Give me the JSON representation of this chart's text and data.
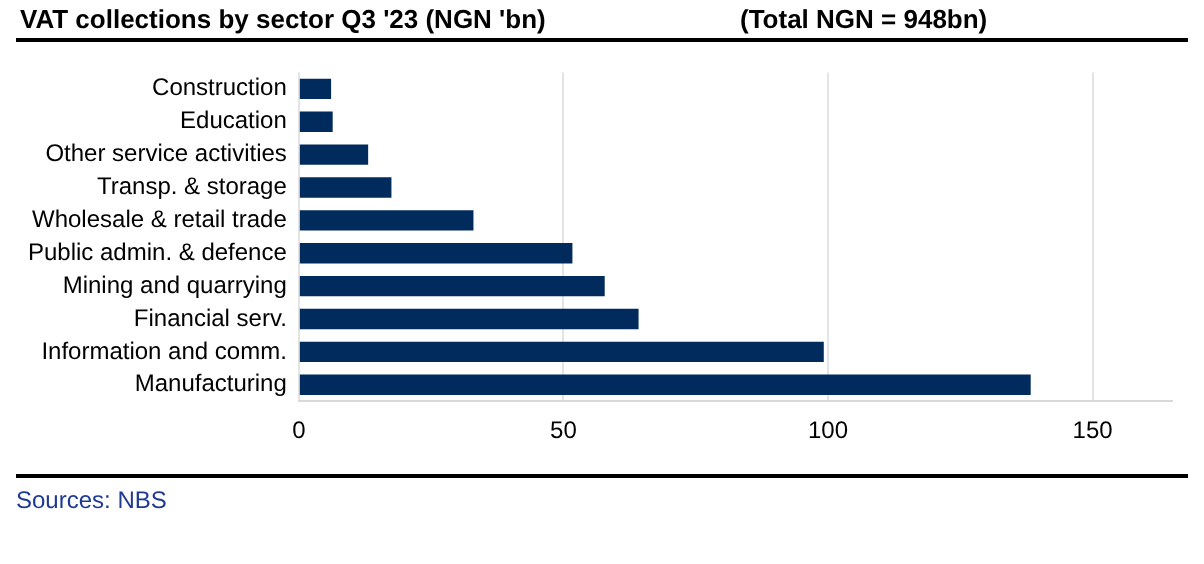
{
  "chart_data": {
    "type": "bar",
    "orientation": "horizontal",
    "title": "VAT collections by sector Q3 '23 (NGN 'bn)",
    "subtitle": "(Total NGN = 948bn)",
    "categories": [
      "Construction",
      "Education",
      "Other service activities",
      "Transp. & storage",
      "Wholesale & retail trade",
      "Public admin. & defence",
      "Mining and quarrying",
      "Financial serv.",
      "Information and comm.",
      "Manufacturing"
    ],
    "values": [
      6.1,
      6.4,
      13.1,
      17.5,
      33,
      51.7,
      57.8,
      64.2,
      99.2,
      138.3
    ],
    "color": "#002b5c",
    "xlim": [
      0,
      165
    ],
    "xticks": [
      0,
      50,
      100,
      150
    ],
    "grid": "x",
    "legend": false,
    "annotations": [
      "Sources: NBS"
    ]
  }
}
